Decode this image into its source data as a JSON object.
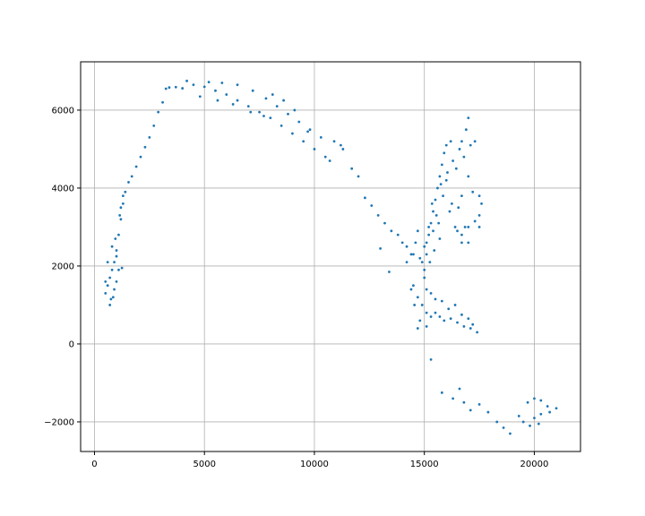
{
  "chart_data": {
    "type": "scatter",
    "title": "",
    "xlabel": "",
    "ylabel": "",
    "xlim": [
      -630,
      22100
    ],
    "ylim": [
      -2760,
      7240
    ],
    "grid": true,
    "marker_color": "#1f77b4",
    "x_ticks": [
      {
        "value": 0,
        "label": "0"
      },
      {
        "value": 5000,
        "label": "5000"
      },
      {
        "value": 10000,
        "label": "10000"
      },
      {
        "value": 15000,
        "label": "15000"
      },
      {
        "value": 20000,
        "label": "20000"
      }
    ],
    "y_ticks": [
      {
        "value": -2000,
        "label": "−2000"
      },
      {
        "value": 0,
        "label": "0"
      },
      {
        "value": 2000,
        "label": "2000"
      },
      {
        "value": 4000,
        "label": "4000"
      },
      {
        "value": 6000,
        "label": "6000"
      }
    ],
    "series": [
      {
        "points": [
          [
            500,
            1300
          ],
          [
            600,
            1500
          ],
          [
            700,
            1700
          ],
          [
            800,
            1900
          ],
          [
            900,
            2100
          ],
          [
            1000,
            2400
          ],
          [
            1100,
            2800
          ],
          [
            1200,
            3200
          ],
          [
            1300,
            3600
          ],
          [
            1400,
            3900
          ],
          [
            1550,
            4150
          ],
          [
            700,
            1000
          ],
          [
            750,
            1150
          ],
          [
            900,
            1400
          ],
          [
            1000,
            1600
          ],
          [
            1100,
            1900
          ],
          [
            1250,
            1950
          ],
          [
            600,
            2100
          ],
          [
            800,
            2500
          ],
          [
            950,
            2700
          ],
          [
            1150,
            3300
          ],
          [
            1300,
            3800
          ],
          [
            500,
            1600
          ],
          [
            850,
            1200
          ],
          [
            1000,
            2250
          ],
          [
            1200,
            3500
          ],
          [
            1700,
            4300
          ],
          [
            1900,
            4550
          ],
          [
            2100,
            4800
          ],
          [
            2300,
            5050
          ],
          [
            2500,
            5300
          ],
          [
            2700,
            5600
          ],
          [
            2900,
            5950
          ],
          [
            3100,
            6200
          ],
          [
            3250,
            6550
          ],
          [
            3400,
            6580
          ],
          [
            3700,
            6590
          ],
          [
            4000,
            6560
          ],
          [
            4200,
            6750
          ],
          [
            4500,
            6650
          ],
          [
            5000,
            6600
          ],
          [
            5500,
            6500
          ],
          [
            6000,
            6400
          ],
          [
            6500,
            6250
          ],
          [
            7000,
            6100
          ],
          [
            7500,
            5950
          ],
          [
            8000,
            5800
          ],
          [
            8500,
            5600
          ],
          [
            9000,
            5400
          ],
          [
            9500,
            5200
          ],
          [
            10000,
            5000
          ],
          [
            10500,
            4800
          ],
          [
            10700,
            4700
          ],
          [
            5200,
            6720
          ],
          [
            5800,
            6700
          ],
          [
            6500,
            6650
          ],
          [
            7200,
            6500
          ],
          [
            7800,
            6300
          ],
          [
            8300,
            6100
          ],
          [
            8800,
            5900
          ],
          [
            9300,
            5700
          ],
          [
            9800,
            5500
          ],
          [
            10300,
            5300
          ],
          [
            10900,
            5200
          ],
          [
            11200,
            5100
          ],
          [
            11300,
            5000
          ],
          [
            4800,
            6350
          ],
          [
            5600,
            6250
          ],
          [
            6300,
            6150
          ],
          [
            7100,
            5950
          ],
          [
            7700,
            5850
          ],
          [
            8100,
            6400
          ],
          [
            8600,
            6250
          ],
          [
            9100,
            6000
          ],
          [
            9700,
            5450
          ],
          [
            11700,
            4500
          ],
          [
            12000,
            4300
          ],
          [
            12300,
            3750
          ],
          [
            12600,
            3550
          ],
          [
            12900,
            3300
          ],
          [
            13200,
            3100
          ],
          [
            13500,
            2900
          ],
          [
            13800,
            2800
          ],
          [
            14000,
            2600
          ],
          [
            13400,
            1850
          ],
          [
            13000,
            2450
          ],
          [
            14200,
            2500
          ],
          [
            14500,
            2300
          ],
          [
            14800,
            2200
          ],
          [
            15000,
            2500
          ],
          [
            15200,
            2800
          ],
          [
            15300,
            3100
          ],
          [
            15400,
            3400
          ],
          [
            15500,
            3700
          ],
          [
            15600,
            4000
          ],
          [
            15700,
            4300
          ],
          [
            15800,
            4600
          ],
          [
            15900,
            4900
          ],
          [
            16000,
            5100
          ],
          [
            16200,
            5200
          ],
          [
            15100,
            2600
          ],
          [
            15250,
            2100
          ],
          [
            15400,
            2900
          ],
          [
            15550,
            3300
          ],
          [
            15700,
            2700
          ],
          [
            15850,
            3800
          ],
          [
            16000,
            4200
          ],
          [
            16150,
            3400
          ],
          [
            16300,
            4700
          ],
          [
            16450,
            4500
          ],
          [
            16600,
            5000
          ],
          [
            16700,
            5200
          ],
          [
            16800,
            4800
          ],
          [
            16900,
            5500
          ],
          [
            17000,
            5800
          ],
          [
            17100,
            5100
          ],
          [
            17300,
            5200
          ],
          [
            15000,
            1900
          ],
          [
            15100,
            2300
          ],
          [
            15200,
            3000
          ],
          [
            15350,
            3600
          ],
          [
            15450,
            2400
          ],
          [
            15650,
            3100
          ],
          [
            15750,
            4100
          ],
          [
            16050,
            4400
          ],
          [
            16250,
            3600
          ],
          [
            16400,
            3000
          ],
          [
            16550,
            3500
          ],
          [
            16700,
            3800
          ],
          [
            16850,
            3000
          ],
          [
            17000,
            4300
          ],
          [
            17200,
            3900
          ],
          [
            17500,
            3800
          ],
          [
            17600,
            3600
          ],
          [
            17500,
            3300
          ],
          [
            17300,
            3150
          ],
          [
            17000,
            3000
          ],
          [
            16700,
            2800
          ],
          [
            16500,
            2900
          ],
          [
            16700,
            2600
          ],
          [
            17000,
            2600
          ],
          [
            17500,
            3000
          ],
          [
            14600,
            2600
          ],
          [
            14400,
            2300
          ],
          [
            14200,
            2100
          ],
          [
            14700,
            2900
          ],
          [
            14900,
            2100
          ],
          [
            15000,
            1700
          ],
          [
            15100,
            1400
          ],
          [
            15300,
            1300
          ],
          [
            15500,
            1150
          ],
          [
            14500,
            1500
          ],
          [
            14700,
            1200
          ],
          [
            14900,
            1000
          ],
          [
            15100,
            800
          ],
          [
            15300,
            700
          ],
          [
            15500,
            800
          ],
          [
            15700,
            700
          ],
          [
            15900,
            600
          ],
          [
            16200,
            650
          ],
          [
            16500,
            550
          ],
          [
            16800,
            450
          ],
          [
            17100,
            400
          ],
          [
            17400,
            300
          ],
          [
            14400,
            1400
          ],
          [
            14550,
            1000
          ],
          [
            14800,
            600
          ],
          [
            15100,
            450
          ],
          [
            14700,
            400
          ],
          [
            15800,
            1100
          ],
          [
            16100,
            900
          ],
          [
            16400,
            1000
          ],
          [
            16700,
            750
          ],
          [
            17000,
            650
          ],
          [
            17200,
            500
          ],
          [
            15300,
            -400
          ],
          [
            15800,
            -1250
          ],
          [
            16300,
            -1400
          ],
          [
            16600,
            -1150
          ],
          [
            16800,
            -1500
          ],
          [
            17100,
            -1700
          ],
          [
            17500,
            -1550
          ],
          [
            17900,
            -1750
          ],
          [
            18300,
            -2000
          ],
          [
            18600,
            -2150
          ],
          [
            18900,
            -2300
          ],
          [
            19300,
            -1850
          ],
          [
            19700,
            -1500
          ],
          [
            20000,
            -1400
          ],
          [
            20300,
            -1450
          ],
          [
            20600,
            -1600
          ],
          [
            21000,
            -1650
          ],
          [
            20700,
            -1750
          ],
          [
            20300,
            -1800
          ],
          [
            20000,
            -1900
          ],
          [
            20200,
            -2050
          ],
          [
            19800,
            -2100
          ],
          [
            19500,
            -2000
          ]
        ]
      }
    ]
  }
}
